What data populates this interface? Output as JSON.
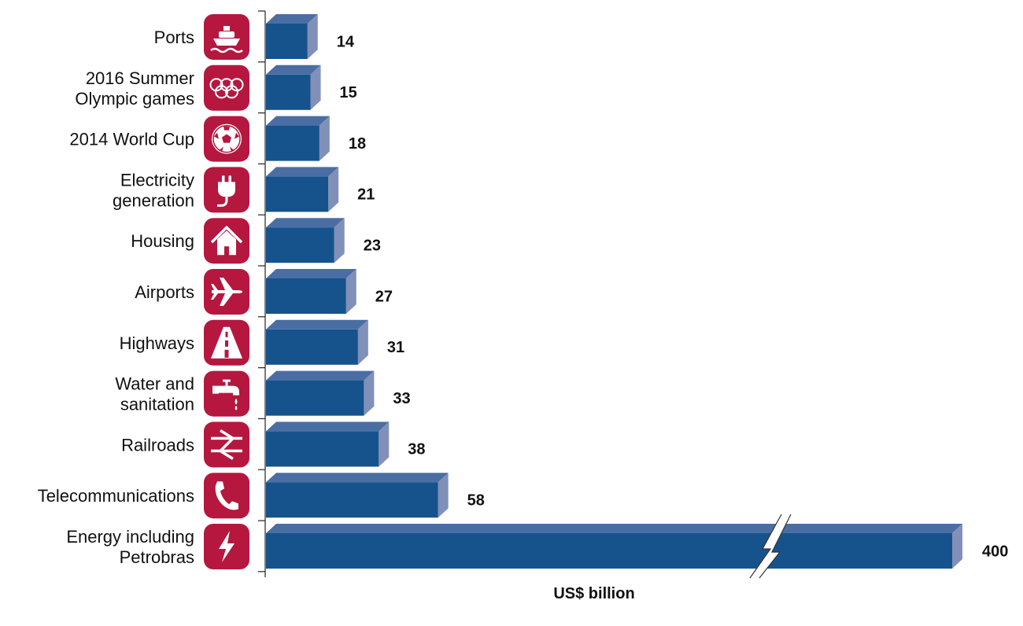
{
  "chart_data": {
    "type": "bar",
    "orientation": "horizontal",
    "categories": [
      [
        "Ports"
      ],
      [
        "2016 Summer",
        "Olympic games"
      ],
      [
        "2014 World Cup"
      ],
      [
        "Electricity",
        "generation"
      ],
      [
        "Housing"
      ],
      [
        "Airports"
      ],
      [
        "Highways"
      ],
      [
        "Water and",
        "sanitation"
      ],
      [
        "Railroads"
      ],
      [
        "Telecommunications"
      ],
      [
        "Energy including",
        "Petrobras"
      ]
    ],
    "values": [
      14,
      15,
      18,
      21,
      23,
      27,
      31,
      33,
      38,
      58,
      400
    ],
    "value_labels": [
      "14",
      "15",
      "18",
      "21",
      "23",
      "27",
      "31",
      "33",
      "38",
      "58",
      "400"
    ],
    "icons": [
      "ship-icon",
      "olympic-rings-icon",
      "soccer-ball-icon",
      "plug-icon",
      "house-icon",
      "airplane-icon",
      "highway-icon",
      "faucet-icon",
      "railway-icon",
      "telephone-icon",
      "lightning-icon"
    ],
    "xlabel": "US$ billion",
    "axis_break": true,
    "grid": false,
    "colors": {
      "bar_front": "#16538c",
      "bar_top": "#4a6ea3",
      "bar_side": "#8190b8",
      "icon_bg": "#b5173f"
    }
  }
}
